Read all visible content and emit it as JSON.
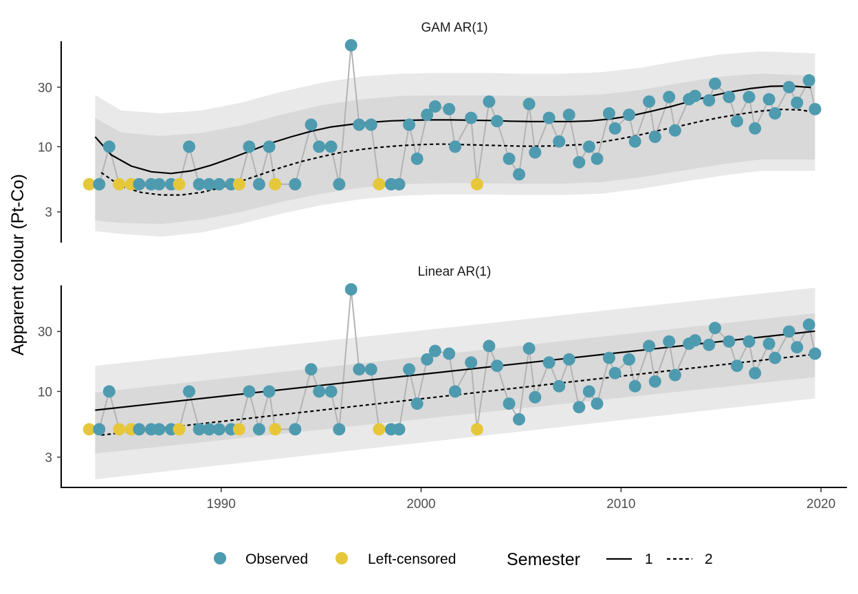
{
  "chart_data": {
    "type": "scatter",
    "ylabel": "Apparent colour (Pt-Co)",
    "y_scale": "log",
    "xlim": [
      1982,
      2021.3
    ],
    "ylim": [
      1.7,
      70
    ],
    "x_ticks": [
      1990,
      2000,
      2010,
      2020
    ],
    "y_ticks": [
      3,
      10,
      30
    ],
    "grid": false,
    "colors": {
      "observed": "#4e9bb0",
      "censored": "#e6c73a",
      "connector": "#b3b3b3",
      "ribbon_outer": "#e9e9e9",
      "ribbon_inner": "#d9d9d9",
      "fit": "#000000"
    },
    "observations": [
      {
        "x": 1983.4,
        "y": 5,
        "status": "Left-censored"
      },
      {
        "x": 1983.9,
        "y": 5,
        "status": "Observed"
      },
      {
        "x": 1984.4,
        "y": 10,
        "status": "Observed"
      },
      {
        "x": 1984.9,
        "y": 5,
        "status": "Left-censored"
      },
      {
        "x": 1985.5,
        "y": 5,
        "status": "Left-censored"
      },
      {
        "x": 1985.9,
        "y": 5,
        "status": "Observed"
      },
      {
        "x": 1986.5,
        "y": 5,
        "status": "Observed"
      },
      {
        "x": 1986.9,
        "y": 5,
        "status": "Observed"
      },
      {
        "x": 1987.5,
        "y": 5,
        "status": "Observed"
      },
      {
        "x": 1987.9,
        "y": 5,
        "status": "Left-censored"
      },
      {
        "x": 1988.4,
        "y": 10,
        "status": "Observed"
      },
      {
        "x": 1988.9,
        "y": 5,
        "status": "Observed"
      },
      {
        "x": 1989.4,
        "y": 5,
        "status": "Observed"
      },
      {
        "x": 1989.9,
        "y": 5,
        "status": "Observed"
      },
      {
        "x": 1990.5,
        "y": 5,
        "status": "Observed"
      },
      {
        "x": 1990.9,
        "y": 5,
        "status": "Left-censored"
      },
      {
        "x": 1991.4,
        "y": 10,
        "status": "Observed"
      },
      {
        "x": 1991.9,
        "y": 5,
        "status": "Observed"
      },
      {
        "x": 1992.4,
        "y": 10,
        "status": "Observed"
      },
      {
        "x": 1992.7,
        "y": 5,
        "status": "Left-censored"
      },
      {
        "x": 1993.7,
        "y": 5,
        "status": "Observed"
      },
      {
        "x": 1994.5,
        "y": 15,
        "status": "Observed"
      },
      {
        "x": 1994.9,
        "y": 10,
        "status": "Observed"
      },
      {
        "x": 1995.5,
        "y": 10,
        "status": "Observed"
      },
      {
        "x": 1995.9,
        "y": 5,
        "status": "Observed"
      },
      {
        "x": 1996.5,
        "y": 65,
        "status": "Observed"
      },
      {
        "x": 1996.9,
        "y": 15,
        "status": "Observed"
      },
      {
        "x": 1997.5,
        "y": 15,
        "status": "Observed"
      },
      {
        "x": 1997.9,
        "y": 5,
        "status": "Left-censored"
      },
      {
        "x": 1998.5,
        "y": 5,
        "status": "Observed"
      },
      {
        "x": 1998.9,
        "y": 5,
        "status": "Observed"
      },
      {
        "x": 1999.4,
        "y": 15,
        "status": "Observed"
      },
      {
        "x": 1999.8,
        "y": 8,
        "status": "Observed"
      },
      {
        "x": 2000.3,
        "y": 18,
        "status": "Observed"
      },
      {
        "x": 2000.7,
        "y": 21,
        "status": "Observed"
      },
      {
        "x": 2001.4,
        "y": 20,
        "status": "Observed"
      },
      {
        "x": 2001.7,
        "y": 10,
        "status": "Observed"
      },
      {
        "x": 2002.5,
        "y": 17,
        "status": "Observed"
      },
      {
        "x": 2002.8,
        "y": 5,
        "status": "Left-censored"
      },
      {
        "x": 2003.4,
        "y": 23,
        "status": "Observed"
      },
      {
        "x": 2003.8,
        "y": 16,
        "status": "Observed"
      },
      {
        "x": 2004.4,
        "y": 8,
        "status": "Observed"
      },
      {
        "x": 2004.9,
        "y": 6,
        "status": "Observed"
      },
      {
        "x": 2005.4,
        "y": 22,
        "status": "Observed"
      },
      {
        "x": 2005.7,
        "y": 9,
        "status": "Observed"
      },
      {
        "x": 2006.4,
        "y": 17,
        "status": "Observed"
      },
      {
        "x": 2006.9,
        "y": 11,
        "status": "Observed"
      },
      {
        "x": 2007.4,
        "y": 18,
        "status": "Observed"
      },
      {
        "x": 2007.9,
        "y": 7.5,
        "status": "Observed"
      },
      {
        "x": 2008.4,
        "y": 10,
        "status": "Observed"
      },
      {
        "x": 2008.8,
        "y": 8,
        "status": "Observed"
      },
      {
        "x": 2009.4,
        "y": 18.5,
        "status": "Observed"
      },
      {
        "x": 2009.7,
        "y": 14,
        "status": "Observed"
      },
      {
        "x": 2010.4,
        "y": 18,
        "status": "Observed"
      },
      {
        "x": 2010.7,
        "y": 11,
        "status": "Observed"
      },
      {
        "x": 2011.4,
        "y": 23,
        "status": "Observed"
      },
      {
        "x": 2011.7,
        "y": 12,
        "status": "Observed"
      },
      {
        "x": 2012.4,
        "y": 25,
        "status": "Observed"
      },
      {
        "x": 2012.7,
        "y": 13.5,
        "status": "Observed"
      },
      {
        "x": 2013.4,
        "y": 24,
        "status": "Observed"
      },
      {
        "x": 2013.7,
        "y": 25.5,
        "status": "Observed"
      },
      {
        "x": 2014.4,
        "y": 23.5,
        "status": "Observed"
      },
      {
        "x": 2014.7,
        "y": 32,
        "status": "Observed"
      },
      {
        "x": 2015.4,
        "y": 25,
        "status": "Observed"
      },
      {
        "x": 2015.8,
        "y": 16,
        "status": "Observed"
      },
      {
        "x": 2016.4,
        "y": 25,
        "status": "Observed"
      },
      {
        "x": 2016.7,
        "y": 14,
        "status": "Observed"
      },
      {
        "x": 2017.4,
        "y": 24,
        "status": "Observed"
      },
      {
        "x": 2017.7,
        "y": 18.5,
        "status": "Observed"
      },
      {
        "x": 2018.4,
        "y": 30,
        "status": "Observed"
      },
      {
        "x": 2018.8,
        "y": 22.5,
        "status": "Observed"
      },
      {
        "x": 2019.4,
        "y": 34,
        "status": "Observed"
      },
      {
        "x": 2019.7,
        "y": 20,
        "status": "Observed"
      }
    ],
    "panels": [
      {
        "title": "GAM AR(1)",
        "semester1_fit": {
          "x": [
            1983.7,
            1984.5,
            1985.5,
            1986.5,
            1987.5,
            1988.5,
            1989.5,
            1990.5,
            1991.5,
            1992.5,
            1993.5,
            1994.5,
            1995.5,
            1996.5,
            1997.5,
            1998.5,
            1999.5,
            2000.5,
            2001.5,
            2002.5,
            2003.5,
            2004.5,
            2005.5,
            2006.5,
            2007.5,
            2008.5,
            2009.5,
            2010.5,
            2011.5,
            2012.5,
            2013.5,
            2014.5,
            2015.5,
            2016.5,
            2017.5,
            2018.5,
            2019.5
          ],
          "y": [
            12,
            8.6,
            7,
            6.3,
            6.1,
            6.4,
            7.1,
            8.1,
            9.3,
            10.7,
            12,
            13.3,
            14.4,
            15.1,
            15.7,
            16.1,
            16.3,
            16.4,
            16.4,
            16.3,
            16.2,
            16,
            15.9,
            15.9,
            15.9,
            16.1,
            16.7,
            17.7,
            19.2,
            21,
            23.2,
            25.5,
            27.5,
            29.3,
            30.5,
            30.7,
            29.8
          ]
        },
        "semester2_fit": {
          "x": [
            1984.0,
            1985.0,
            1986.0,
            1987.0,
            1988.0,
            1989.0,
            1990.0,
            1991.0,
            1992.0,
            1993.0,
            1994.0,
            1995.0,
            1996.0,
            1997.0,
            1998.0,
            1999.0,
            2000.0,
            2001.0,
            2002.0,
            2003.0,
            2004.0,
            2005.0,
            2006.0,
            2007.0,
            2008.0,
            2009.0,
            2010.0,
            2011.0,
            2012.0,
            2013.0,
            2014.0,
            2015.0,
            2016.0,
            2017.0,
            2018.0,
            2019.0,
            2019.7
          ],
          "y": [
            6.2,
            4.8,
            4.3,
            4.1,
            4.1,
            4.3,
            4.7,
            5.3,
            6,
            6.8,
            7.6,
            8.3,
            9,
            9.5,
            9.9,
            10.2,
            10.4,
            10.5,
            10.4,
            10.3,
            10.2,
            10.1,
            10.1,
            10.2,
            10.4,
            10.9,
            11.6,
            12.5,
            13.6,
            14.7,
            16,
            17.2,
            18.3,
            19.3,
            19.9,
            19.7,
            18.8
          ]
        },
        "ribbon_outer": {
          "x": [
            1983.7,
            1985.0,
            1987.0,
            1989.0,
            1991.0,
            1993.0,
            1995.0,
            1997.0,
            1999.0,
            2001.0,
            2003.0,
            2005.0,
            2007.0,
            2009.0,
            2011.0,
            2013.0,
            2015.0,
            2017.0,
            2019.7
          ],
          "lower": [
            2.1,
            2.0,
            1.9,
            2.05,
            2.4,
            2.9,
            3.4,
            3.8,
            4.05,
            4.15,
            4.15,
            4.1,
            4.1,
            4.2,
            4.6,
            5.2,
            5.85,
            6.4,
            6.4
          ],
          "upper": [
            26,
            19.5,
            18.5,
            19.5,
            22.5,
            27.5,
            32.5,
            36.5,
            38.5,
            39,
            39,
            38.5,
            38.5,
            39.5,
            43,
            49,
            55,
            58,
            56
          ]
        },
        "ribbon_inner": {
          "x": [
            1983.7,
            1985.0,
            1987.0,
            1989.0,
            1991.0,
            1993.0,
            1995.0,
            1997.0,
            1999.0,
            2001.0,
            2003.0,
            2005.0,
            2007.0,
            2009.0,
            2011.0,
            2013.0,
            2015.0,
            2017.0,
            2019.7
          ],
          "lower": [
            2.55,
            2.45,
            2.4,
            2.6,
            3.0,
            3.6,
            4.2,
            4.7,
            5.0,
            5.1,
            5.1,
            5.05,
            5.05,
            5.2,
            5.7,
            6.4,
            7.2,
            7.9,
            7.9
          ],
          "upper": [
            17,
            13,
            12.2,
            12.9,
            14.8,
            18,
            21.5,
            24,
            25.5,
            25.8,
            25.8,
            25.5,
            25.5,
            26.2,
            28.5,
            32.5,
            36.5,
            38.5,
            37
          ]
        }
      },
      {
        "title": "Linear AR(1)",
        "semester1_fit": {
          "x": [
            1983.7,
            2019.7
          ],
          "y": [
            7.1,
            30.2
          ]
        },
        "semester2_fit": {
          "x": [
            1984.0,
            2019.7
          ],
          "y": [
            4.5,
            19.8
          ]
        },
        "ribbon_outer": {
          "x": [
            1983.7,
            2019.7
          ],
          "lower": [
            2.0,
            8.8
          ],
          "upper": [
            16,
            67
          ]
        },
        "ribbon_inner": {
          "x": [
            1983.7,
            2019.7
          ],
          "lower": [
            3.2,
            13
          ],
          "upper": [
            9.8,
            42
          ]
        }
      }
    ],
    "legend": {
      "position": "bottom",
      "point_items": [
        "Observed",
        "Left-censored"
      ],
      "line_title": "Semester",
      "line_items": [
        "1",
        "2"
      ]
    }
  }
}
